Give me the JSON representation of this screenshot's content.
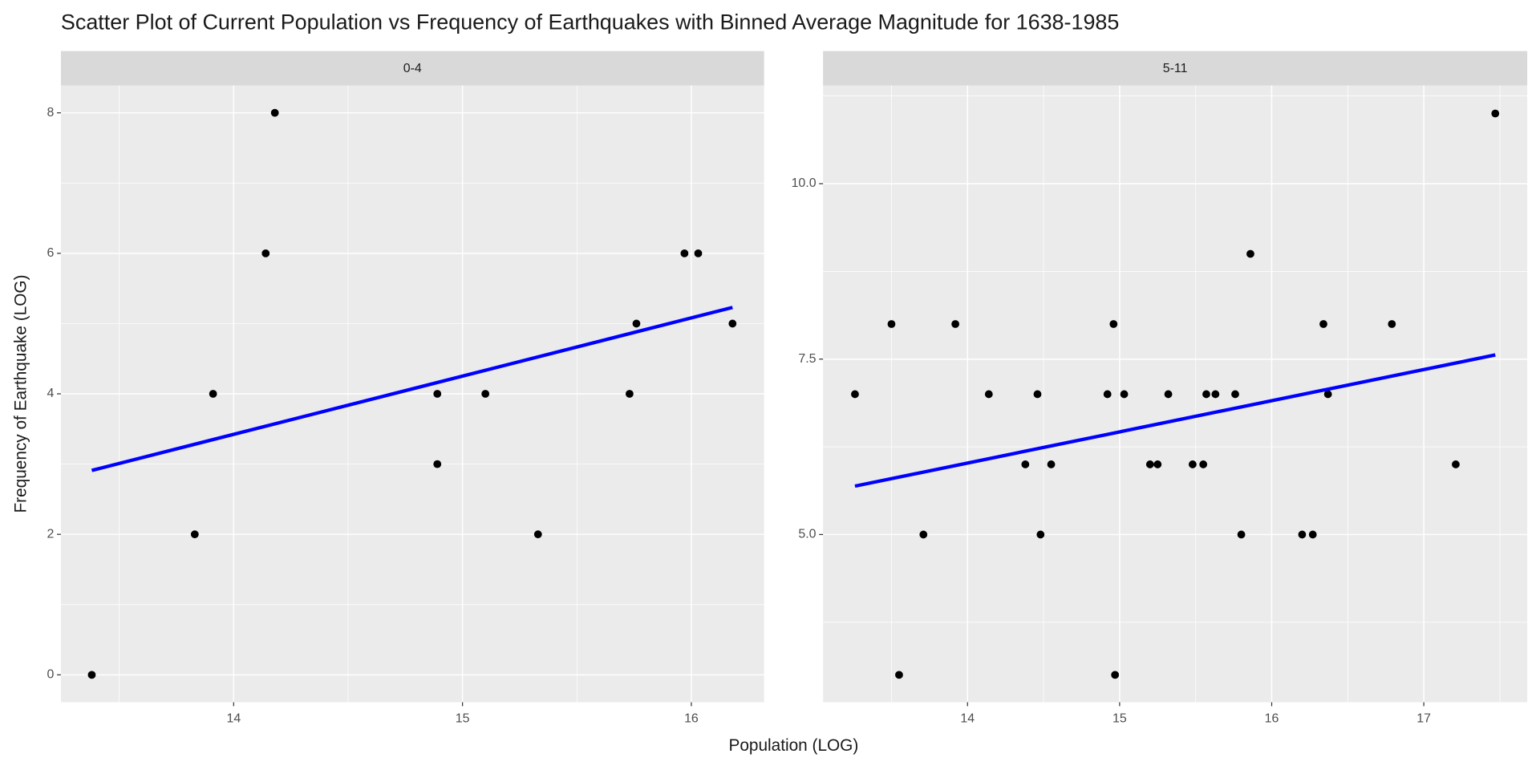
{
  "figure": {
    "title": "Scatter Plot of Current Population vs Frequency of Earthquakes with Binned Average Magnitude for 1638-1985",
    "x_label": "Population (LOG)",
    "y_label": "Frequency of Earthquake (LOG)"
  },
  "chart_data": [
    {
      "type": "scatter",
      "facet": "0-4",
      "color": "#000000",
      "grid": true,
      "x": [
        13.38,
        13.83,
        13.91,
        14.14,
        14.18,
        14.89,
        14.89,
        15.1,
        15.33,
        15.73,
        15.76,
        15.97,
        16.03,
        16.18
      ],
      "y": [
        0,
        2,
        4,
        6,
        8,
        4,
        3,
        4,
        2,
        4,
        5,
        6,
        6,
        5
      ],
      "trend": {
        "color": "#0000ff",
        "x": [
          13.38,
          16.18
        ],
        "y": [
          2.91,
          5.23
        ]
      },
      "xlim": [
        13.245,
        16.318
      ],
      "ylim": [
        -0.39,
        8.39
      ],
      "xticks": [
        14,
        15,
        16
      ],
      "yticks": [
        0,
        2,
        4,
        6,
        8
      ]
    },
    {
      "type": "scatter",
      "facet": "5-11",
      "color": "#000000",
      "grid": true,
      "x": [
        13.26,
        13.5,
        13.55,
        13.71,
        13.92,
        14.14,
        14.38,
        14.46,
        14.48,
        14.55,
        14.92,
        14.96,
        14.97,
        15.03,
        15.2,
        15.25,
        15.32,
        15.48,
        15.55,
        15.57,
        15.63,
        15.76,
        15.8,
        15.86,
        16.2,
        16.27,
        16.34,
        16.37,
        16.79,
        17.21,
        17.47
      ],
      "y": [
        7,
        8,
        3,
        5,
        8,
        7,
        6,
        7,
        5,
        6,
        7,
        8,
        3,
        7,
        6,
        6,
        7,
        6,
        6,
        7,
        7,
        7,
        5,
        9,
        5,
        5,
        8,
        7,
        8,
        6,
        11
      ],
      "trend": {
        "color": "#0000ff",
        "x": [
          13.26,
          17.47
        ],
        "y": [
          5.69,
          7.56
        ]
      },
      "xlim": [
        13.05,
        17.68
      ],
      "ylim": [
        2.61,
        11.4
      ],
      "xticks": [
        14,
        15,
        16,
        17
      ],
      "yticks": [
        {
          "value": 5,
          "label": "5.0"
        },
        {
          "value": 7.5,
          "label": "7.5"
        },
        {
          "value": 10,
          "label": "10.0"
        }
      ]
    }
  ]
}
